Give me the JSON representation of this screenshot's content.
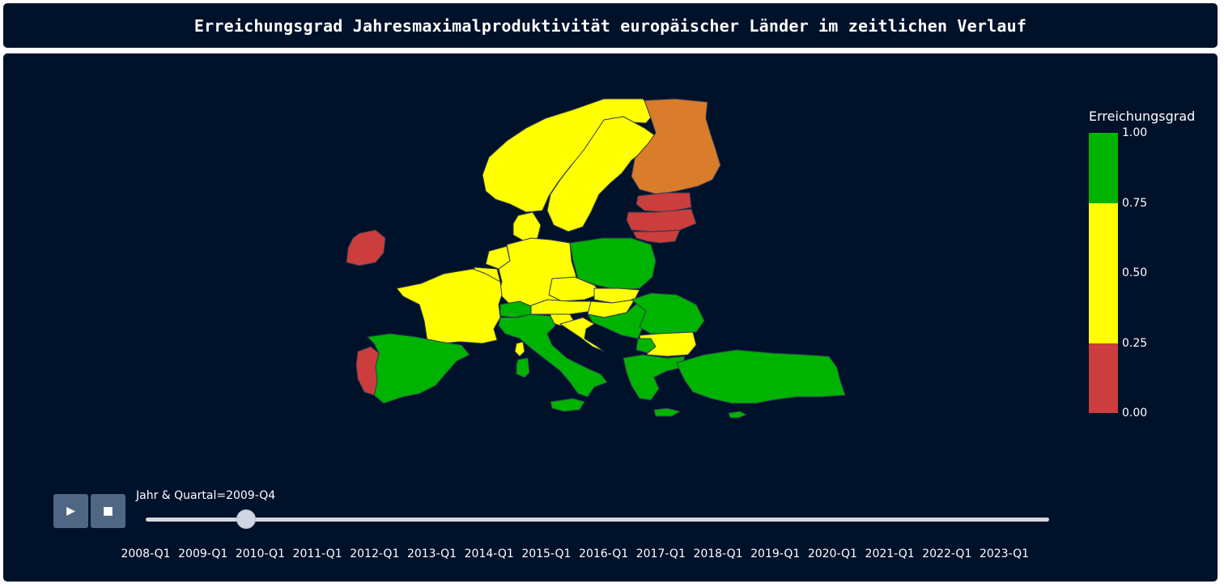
{
  "title": "Erreichungsgrad Jahresmaximalproduktivität europäischer Länder im zeitlichen Verlauf",
  "colors": {
    "background": "#00112a",
    "red": "#cc3d3d",
    "yellow": "#ffff00",
    "green": "#00b300",
    "orange": "#d97c2b",
    "border": "#2d3b4f"
  },
  "legend": {
    "title": "Erreichungsgrad",
    "ticks": [
      "1.00",
      "0.75",
      "0.50",
      "0.25",
      "0.00"
    ],
    "bands": [
      {
        "from": 0.75,
        "to": 1.0,
        "color": "#00b300"
      },
      {
        "from": 0.5,
        "to": 0.75,
        "color": "#ffff00"
      },
      {
        "from": 0.25,
        "to": 0.5,
        "color": "#ffff00"
      },
      {
        "from": 0.0,
        "to": 0.25,
        "color": "#cc3d3d"
      }
    ]
  },
  "controls": {
    "play_icon": "play-icon",
    "play_glyph": "▶",
    "stop_icon": "stop-icon",
    "stop_glyph": "■"
  },
  "slider": {
    "prefix": "Jahr & Quartal=",
    "current": "2009-Q4",
    "label": "Jahr & Quartal=2009-Q4",
    "ticks": [
      "2008-Q1",
      "2009-Q1",
      "2010-Q1",
      "2011-Q1",
      "2012-Q1",
      "2013-Q1",
      "2014-Q1",
      "2015-Q1",
      "2016-Q1",
      "2017-Q1",
      "2018-Q1",
      "2019-Q1",
      "2020-Q1",
      "2021-Q1",
      "2022-Q1",
      "2023-Q1"
    ],
    "quarters_total": 61,
    "current_index": 7
  },
  "chart_data": {
    "type": "choropleth",
    "color_variable": "Erreichungsgrad",
    "range": [
      0,
      1
    ],
    "frame": "2009-Q4",
    "regions": [
      {
        "name": "Norway",
        "level": "yellow"
      },
      {
        "name": "Sweden",
        "level": "yellow"
      },
      {
        "name": "Finland",
        "level": "orange"
      },
      {
        "name": "Estonia",
        "level": "red"
      },
      {
        "name": "Latvia",
        "level": "red"
      },
      {
        "name": "Lithuania",
        "level": "red"
      },
      {
        "name": "Ireland",
        "level": "red"
      },
      {
        "name": "Denmark",
        "level": "yellow"
      },
      {
        "name": "Netherlands",
        "level": "yellow"
      },
      {
        "name": "Belgium",
        "level": "yellow"
      },
      {
        "name": "Luxembourg",
        "level": "yellow"
      },
      {
        "name": "Germany",
        "level": "yellow"
      },
      {
        "name": "Poland",
        "level": "green"
      },
      {
        "name": "Czechia",
        "level": "yellow"
      },
      {
        "name": "Slovakia",
        "level": "yellow"
      },
      {
        "name": "Austria",
        "level": "yellow"
      },
      {
        "name": "Hungary",
        "level": "yellow"
      },
      {
        "name": "France",
        "level": "yellow"
      },
      {
        "name": "Switzerland",
        "level": "green"
      },
      {
        "name": "Slovenia",
        "level": "yellow"
      },
      {
        "name": "Croatia",
        "level": "yellow"
      },
      {
        "name": "Serbia",
        "level": "green"
      },
      {
        "name": "Romania",
        "level": "green"
      },
      {
        "name": "Bulgaria",
        "level": "yellow"
      },
      {
        "name": "Italy",
        "level": "green"
      },
      {
        "name": "Corsica",
        "level": "yellow"
      },
      {
        "name": "Sardinia",
        "level": "green"
      },
      {
        "name": "Spain",
        "level": "green"
      },
      {
        "name": "Portugal",
        "level": "red"
      },
      {
        "name": "North Macedonia",
        "level": "green"
      },
      {
        "name": "Greece",
        "level": "green"
      },
      {
        "name": "Turkey",
        "level": "green"
      },
      {
        "name": "Crete",
        "level": "green"
      },
      {
        "name": "Cyprus",
        "level": "green"
      }
    ]
  }
}
